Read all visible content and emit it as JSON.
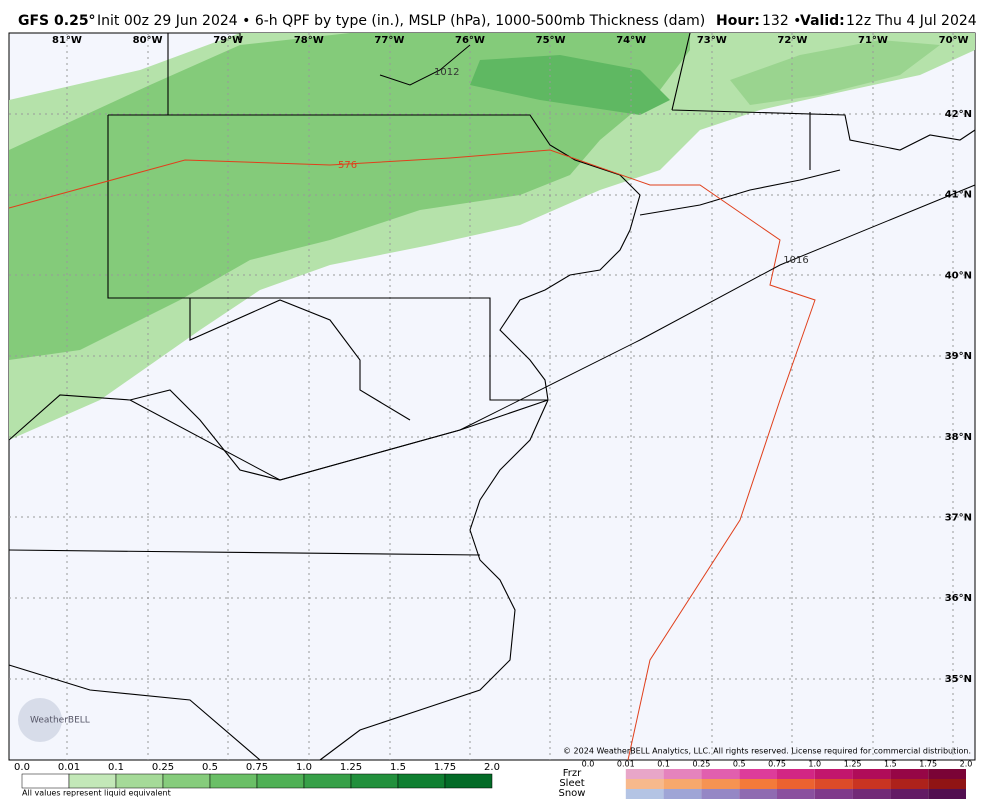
{
  "header": {
    "model": "GFS 0.25°",
    "description": "Init 00z 29 Jun 2024 • 6-h QPF by type (in.), MSLP (hPa), 1000-500mb Thickness (dam)",
    "hour_label": "Hour:",
    "hour": "132 •",
    "valid_label": "Valid:",
    "valid": "12z Thu 4 Jul 2024"
  },
  "map": {
    "lon_labels": [
      "81°W",
      "80°W",
      "79°W",
      "78°W",
      "77°W",
      "76°W",
      "75°W",
      "74°W",
      "73°W",
      "72°W",
      "71°W",
      "70°W"
    ],
    "lat_labels": [
      "42°N",
      "41°N",
      "40°N",
      "39°N",
      "38°N",
      "37°N",
      "36°N",
      "35°N"
    ],
    "contour_labels": [
      "1012",
      "576",
      "1016"
    ],
    "copyright": "© 2024 WeatherBELL Analytics, LLC. All rights reserved. License required for commercial distribution.",
    "logo": "WeatherBELL"
  },
  "legend": {
    "rain_ticks": [
      "0.0",
      "0.01",
      "0.1",
      "0.25",
      "0.5",
      "0.75",
      "1.0",
      "1.25",
      "1.5",
      "1.75",
      "2.0"
    ],
    "note": "All values represent liquid equivalent",
    "mixed_types": [
      "Frzr",
      "Sleet",
      "Snow"
    ],
    "mixed_ticks": [
      "0.0",
      "0.01",
      "0.1",
      "0.25",
      "0.5",
      "0.75",
      "1.0",
      "1.25",
      "1.5",
      "1.75",
      "2.0"
    ]
  }
}
